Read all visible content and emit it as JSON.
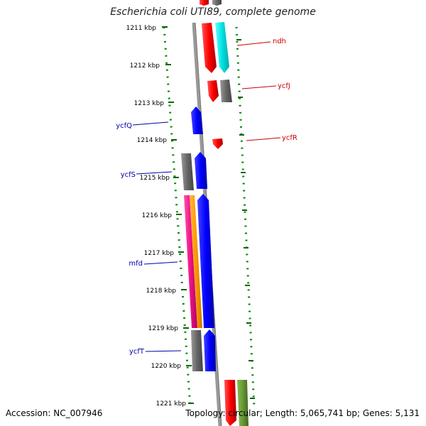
{
  "map": {
    "title": "Escherichia coli UTI89, complete genome",
    "accession": "Accession: NC_007946",
    "info": "Topology: circular; Length: 5,065,741 bp; Genes: 5,131"
  },
  "ruler_labels": [
    "1211 kbp",
    "1212 kbp",
    "1213 kbp",
    "1214 kbp",
    "1215 kbp",
    "1216 kbp",
    "1217 kbp",
    "1218 kbp",
    "1219 kbp",
    "1220 kbp",
    "1221 kbp"
  ],
  "gene_labels": [
    {
      "name": "ndh",
      "color": "#cc0000"
    },
    {
      "name": "ycfJ",
      "color": "#cc0000"
    },
    {
      "name": "ycfR",
      "color": "#cc0000"
    },
    {
      "name": "ycfQ",
      "color": "#0000aa"
    },
    {
      "name": "ycfS",
      "color": "#0000aa"
    },
    {
      "name": "mfd",
      "color": "#0000aa"
    },
    {
      "name": "ycfT",
      "color": "#0000aa"
    }
  ],
  "colors": {
    "forward_gene": "#ff0000",
    "reverse_gene": "#0000ff",
    "cyan_feature": "#00dddd",
    "grey_feature": "#666666",
    "pink_feature": "#ee1188",
    "orange_feature": "#ff9900",
    "olive_feature": "#669933",
    "ruler_dots": "#008800",
    "backbone": "#999999"
  }
}
